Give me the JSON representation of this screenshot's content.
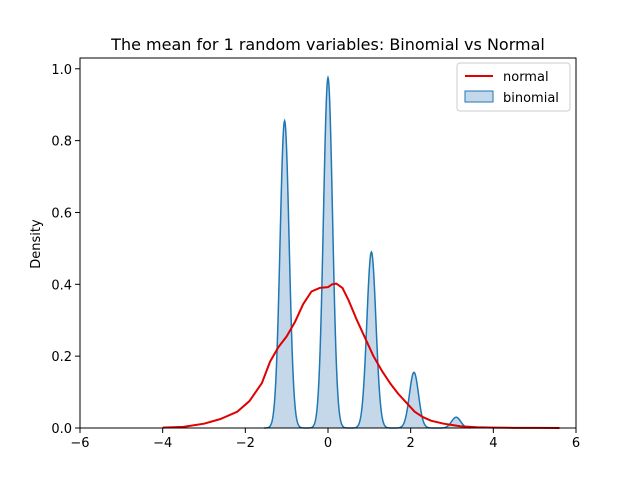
{
  "chart_data": {
    "type": "area",
    "title": "The mean for 1 random variables: Binomial vs Normal",
    "xlabel": "",
    "ylabel": "Density",
    "xlim": [
      -6,
      6
    ],
    "ylim": [
      0,
      1.03
    ],
    "xticks": [
      -6,
      -4,
      -2,
      0,
      2,
      4,
      6
    ],
    "yticks": [
      0.0,
      0.2,
      0.4,
      0.6,
      0.8,
      1.0
    ],
    "xtick_labels": [
      "−6",
      "−4",
      "−2",
      "0",
      "2",
      "4",
      "6"
    ],
    "ytick_labels": [
      "0.0",
      "0.2",
      "0.4",
      "0.6",
      "0.8",
      "1.0"
    ],
    "grid": false,
    "legend_position": "top-right",
    "series": [
      {
        "name": "normal",
        "kind": "line",
        "color": "#e00000",
        "x": [
          -4.0,
          -3.5,
          -3.0,
          -2.6,
          -2.2,
          -1.9,
          -1.6,
          -1.4,
          -1.2,
          -1.0,
          -0.8,
          -0.6,
          -0.4,
          -0.2,
          0.0,
          0.1,
          0.2,
          0.35,
          0.5,
          0.7,
          0.9,
          1.1,
          1.3,
          1.5,
          1.7,
          1.9,
          2.1,
          2.3,
          2.5,
          2.8,
          3.2,
          3.6,
          4.0,
          4.5,
          5.0,
          5.6
        ],
        "y": [
          0.001,
          0.003,
          0.012,
          0.025,
          0.045,
          0.075,
          0.125,
          0.185,
          0.225,
          0.255,
          0.295,
          0.345,
          0.38,
          0.39,
          0.392,
          0.4,
          0.402,
          0.39,
          0.355,
          0.3,
          0.25,
          0.2,
          0.16,
          0.125,
          0.095,
          0.07,
          0.045,
          0.03,
          0.02,
          0.012,
          0.005,
          0.002,
          0.001,
          0.0005,
          0.0002,
          0.0001
        ]
      },
      {
        "name": "binomial",
        "kind": "area",
        "color": "#1f77b4",
        "fill": "#c4d8ea",
        "peaks": [
          {
            "x": -1.05,
            "y": 0.855
          },
          {
            "x": 0.0,
            "y": 0.975
          },
          {
            "x": 1.05,
            "y": 0.49
          },
          {
            "x": 2.08,
            "y": 0.155
          },
          {
            "x": 3.1,
            "y": 0.03
          }
        ],
        "bandwidth": 0.11,
        "x_range": [
          -1.55,
          3.45
        ]
      }
    ]
  }
}
